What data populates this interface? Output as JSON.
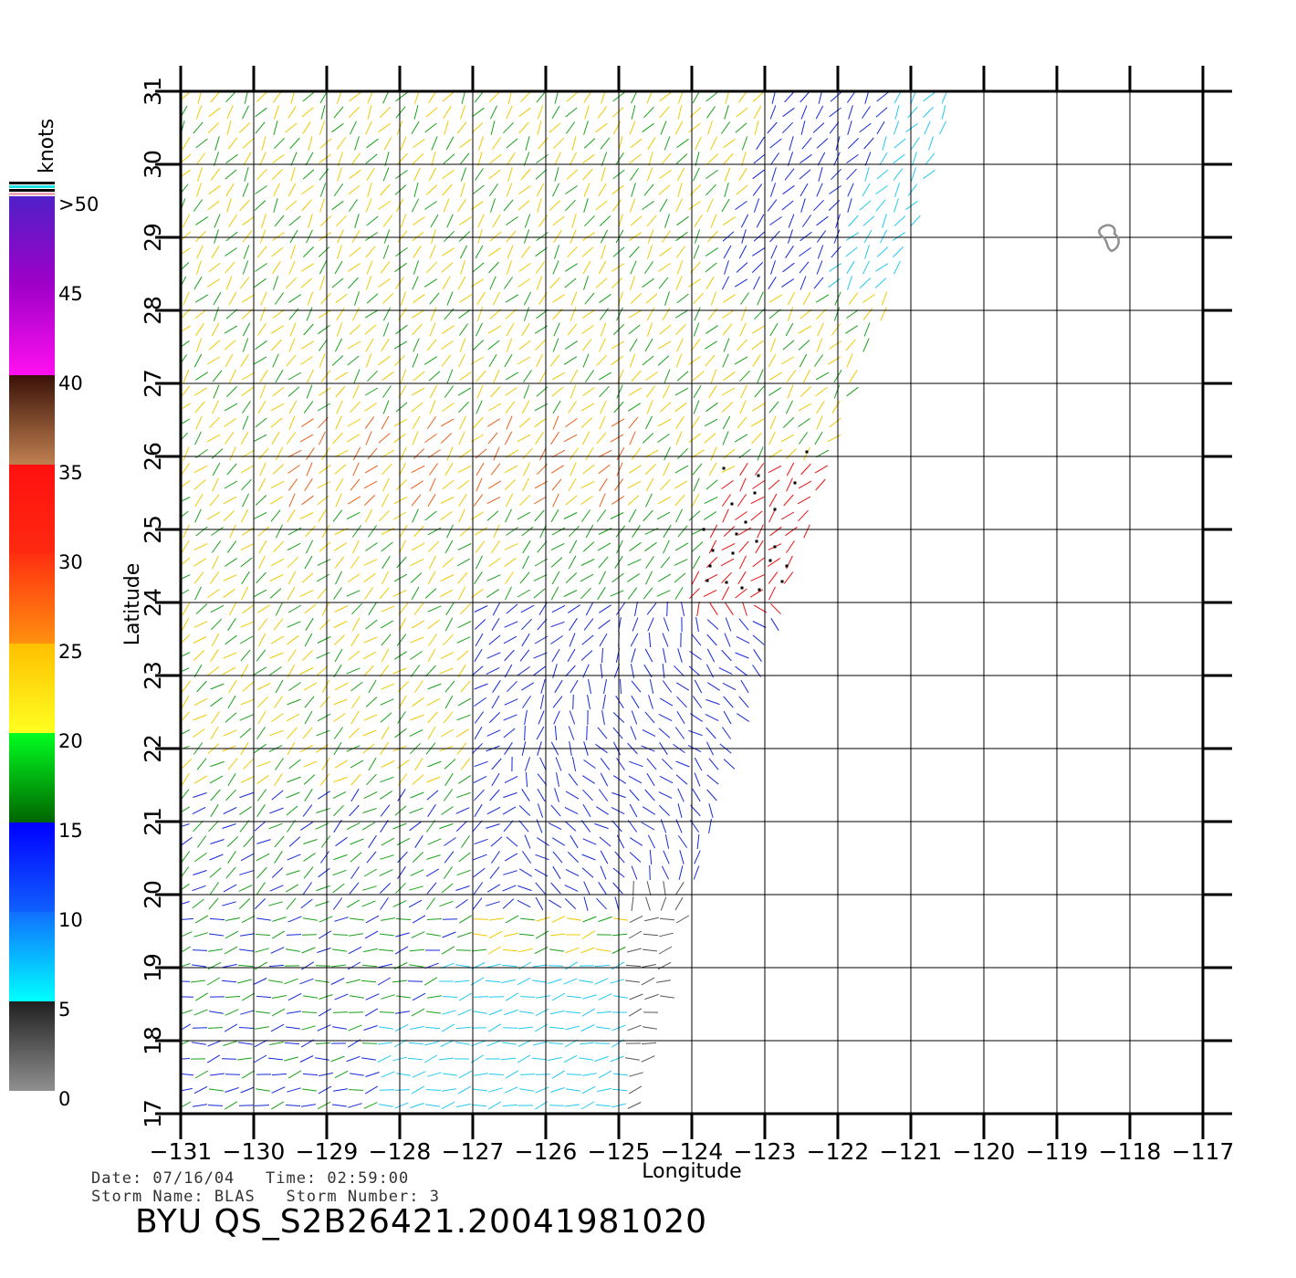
{
  "map": {
    "lon_range": [
      -131,
      -117
    ],
    "lat_range": [
      17,
      31
    ],
    "lon_ticks": [
      "-131",
      "-130",
      "-129",
      "-128",
      "-127",
      "-126",
      "-125",
      "-124",
      "-123",
      "-122",
      "-121",
      "-120",
      "-119",
      "-118",
      "-117"
    ],
    "lat_ticks": [
      "17",
      "18",
      "19",
      "20",
      "21",
      "22",
      "23",
      "24",
      "25",
      "26",
      "27",
      "28",
      "29",
      "30",
      "31"
    ],
    "xlabel": "Longitude",
    "ylabel": "Latitude"
  },
  "colorbar": {
    "unit": "knots",
    "labels": [
      {
        "text": ">50",
        "value": 50
      },
      {
        "text": "45",
        "value": 45
      },
      {
        "text": "40",
        "value": 40
      },
      {
        "text": "35",
        "value": 35
      },
      {
        "text": "30",
        "value": 30
      },
      {
        "text": "25",
        "value": 25
      },
      {
        "text": "20",
        "value": 20
      },
      {
        "text": "15",
        "value": 15
      },
      {
        "text": "10",
        "value": 10
      },
      {
        "text": "5",
        "value": 5
      },
      {
        "text": "0",
        "value": 0
      }
    ],
    "bands": [
      {
        "from": 45,
        "to": 50,
        "colors": [
          "#5020c8",
          "#a000c8"
        ]
      },
      {
        "from": 40,
        "to": 45,
        "colors": [
          "#a000c8",
          "#ff10f0"
        ]
      },
      {
        "from": 35,
        "to": 40,
        "colors": [
          "#3a1208",
          "#c08050"
        ]
      },
      {
        "from": 30,
        "to": 35,
        "colors": [
          "#ff1010",
          "#ff2a10"
        ]
      },
      {
        "from": 25,
        "to": 30,
        "colors": [
          "#ff3010",
          "#ff9010"
        ]
      },
      {
        "from": 20,
        "to": 25,
        "colors": [
          "#ffc000",
          "#ffff20"
        ]
      },
      {
        "from": 15,
        "to": 20,
        "colors": [
          "#00ff20",
          "#006400"
        ]
      },
      {
        "from": 10,
        "to": 15,
        "colors": [
          "#0000ff",
          "#1060ff"
        ]
      },
      {
        "from": 5,
        "to": 10,
        "colors": [
          "#1070ff",
          "#00ffff"
        ]
      },
      {
        "from": 0,
        "to": 5,
        "colors": [
          "#202020",
          "#909090"
        ]
      }
    ]
  },
  "wind_colors": {
    "calm": "#555555",
    "light": "#22c8f0",
    "moderate": "#1428d8",
    "fresh": "#18a018",
    "strong": "#f0c800",
    "gale": "#e86018",
    "storm": "#e81010",
    "rain_flag": "#000000",
    "island_outline": "#909090"
  },
  "footer": {
    "date_line": "Date: 07/16/04   Time: 02:59:00",
    "storm_line": "Storm Name: BLAS   Storm Number: 3",
    "title": "BYU QS_S2B26421.20041981020"
  }
}
